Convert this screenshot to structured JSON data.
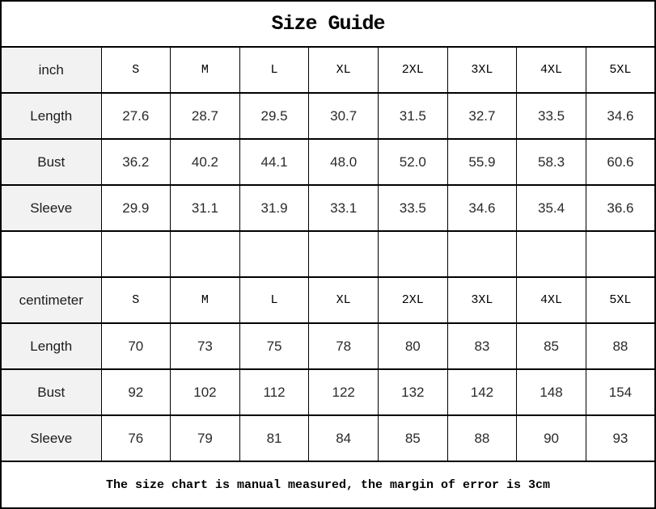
{
  "title": "Size Guide",
  "footer": "The size chart is manual measured, the margin of error is 3cm",
  "colors": {
    "label_background": "#f2f2f2",
    "border": "#000000",
    "background": "#ffffff",
    "text": "#1c1c1c"
  },
  "chart_data": {
    "type": "table",
    "title": "Size Guide",
    "note": "The size chart is manual measured, the margin of error is 3cm",
    "sections": [
      {
        "unit": "inch",
        "sizes": [
          "S",
          "M",
          "L",
          "XL",
          "2XL",
          "3XL",
          "4XL",
          "5XL"
        ],
        "rows": [
          {
            "label": "Length",
            "values": [
              "27.6",
              "28.7",
              "29.5",
              "30.7",
              "31.5",
              "32.7",
              "33.5",
              "34.6"
            ]
          },
          {
            "label": "Bust",
            "values": [
              "36.2",
              "40.2",
              "44.1",
              "48.0",
              "52.0",
              "55.9",
              "58.3",
              "60.6"
            ]
          },
          {
            "label": "Sleeve",
            "values": [
              "29.9",
              "31.1",
              "31.9",
              "33.1",
              "33.5",
              "34.6",
              "35.4",
              "36.6"
            ]
          }
        ]
      },
      {
        "unit": "centimeter",
        "sizes": [
          "S",
          "M",
          "L",
          "XL",
          "2XL",
          "3XL",
          "4XL",
          "5XL"
        ],
        "rows": [
          {
            "label": "Length",
            "values": [
              "70",
              "73",
              "75",
              "78",
              "80",
              "83",
              "85",
              "88"
            ]
          },
          {
            "label": "Bust",
            "values": [
              "92",
              "102",
              "112",
              "122",
              "132",
              "142",
              "148",
              "154"
            ]
          },
          {
            "label": "Sleeve",
            "values": [
              "76",
              "79",
              "81",
              "84",
              "85",
              "88",
              "90",
              "93"
            ]
          }
        ]
      }
    ]
  }
}
